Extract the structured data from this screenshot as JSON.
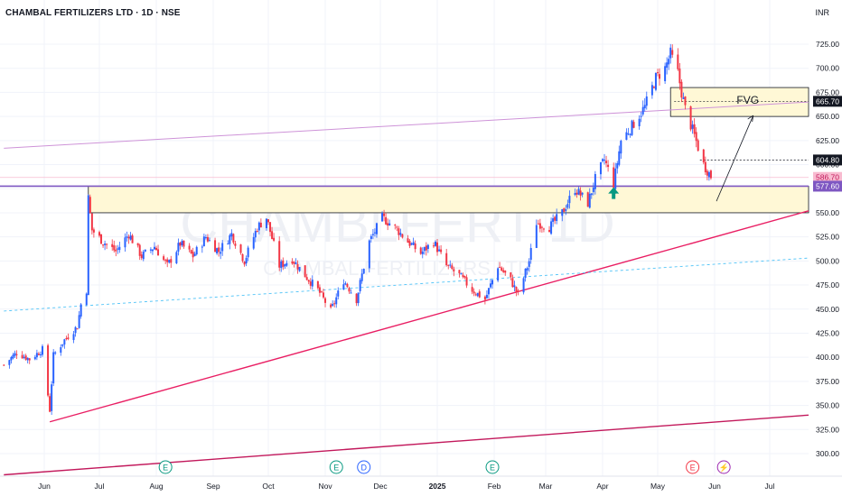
{
  "header": {
    "title": "CHAMBAL FERTILIZERS LTD · 1D · NSE",
    "currency": "INR"
  },
  "watermark": {
    "ticker": "CHAMBLFERT 1D",
    "name": "CHAMBAL FERTILIZERS LTD"
  },
  "chart_data": {
    "type": "candlestick",
    "ylim": [
      290,
      745
    ],
    "y_ticks": [
      725,
      700,
      675,
      650,
      625,
      600,
      575,
      550,
      525,
      500,
      475,
      450,
      425,
      400,
      375,
      350,
      325,
      300
    ],
    "y_tick_labels": [
      "725.00",
      "700.00",
      "675.00",
      "650.00",
      "625.00",
      "600.00",
      "575.00",
      "550.00",
      "525.00",
      "500.00",
      "475.00",
      "450.00",
      "425.00",
      "400.00",
      "375.00",
      "350.00",
      "325.00",
      "300.00"
    ],
    "x_labels": [
      {
        "label": "Jun",
        "date": "2024-06-01"
      },
      {
        "label": "Jul",
        "date": "2024-07-01"
      },
      {
        "label": "Aug",
        "date": "2024-08-01"
      },
      {
        "label": "Sep",
        "date": "2024-09-01"
      },
      {
        "label": "Oct",
        "date": "2024-10-01"
      },
      {
        "label": "Nov",
        "date": "2024-11-01"
      },
      {
        "label": "Dec",
        "date": "2024-12-01"
      },
      {
        "label": "2025",
        "date": "2025-01-01"
      },
      {
        "label": "Feb",
        "date": "2025-02-01"
      },
      {
        "label": "Mar",
        "date": "2025-03-01"
      },
      {
        "label": "Apr",
        "date": "2025-04-01"
      },
      {
        "label": "May",
        "date": "2025-05-01"
      },
      {
        "label": "Jun",
        "date": "2025-06-01"
      },
      {
        "label": "Jul",
        "date": "2025-07-01"
      }
    ],
    "price_path": [
      [
        "2024-05-10",
        392
      ],
      [
        "2024-05-17",
        405
      ],
      [
        "2024-05-24",
        398
      ],
      [
        "2024-05-31",
        408
      ],
      [
        "2024-06-04",
        345
      ],
      [
        "2024-06-06",
        402
      ],
      [
        "2024-06-12",
        418
      ],
      [
        "2024-06-19",
        432
      ],
      [
        "2024-06-21",
        455
      ],
      [
        "2024-06-24",
        470
      ],
      [
        "2024-06-25",
        565
      ],
      [
        "2024-06-27",
        532
      ],
      [
        "2024-07-03",
        520
      ],
      [
        "2024-07-10",
        510
      ],
      [
        "2024-07-17",
        528
      ],
      [
        "2024-07-24",
        505
      ],
      [
        "2024-07-31",
        515
      ],
      [
        "2024-08-07",
        495
      ],
      [
        "2024-08-14",
        518
      ],
      [
        "2024-08-21",
        505
      ],
      [
        "2024-08-28",
        525
      ],
      [
        "2024-09-04",
        510
      ],
      [
        "2024-09-11",
        528
      ],
      [
        "2024-09-18",
        500
      ],
      [
        "2024-09-25",
        535
      ],
      [
        "2024-09-30",
        545
      ],
      [
        "2024-10-07",
        495
      ],
      [
        "2024-10-14",
        502
      ],
      [
        "2024-10-21",
        485
      ],
      [
        "2024-10-28",
        470
      ],
      [
        "2024-11-04",
        448
      ],
      [
        "2024-11-11",
        480
      ],
      [
        "2024-11-18",
        460
      ],
      [
        "2024-11-25",
        520
      ],
      [
        "2024-12-02",
        545
      ],
      [
        "2024-12-09",
        535
      ],
      [
        "2024-12-16",
        520
      ],
      [
        "2024-12-23",
        508
      ],
      [
        "2024-12-30",
        520
      ],
      [
        "2025-01-06",
        495
      ],
      [
        "2025-01-13",
        485
      ],
      [
        "2025-01-20",
        470
      ],
      [
        "2025-01-27",
        460
      ],
      [
        "2025-02-03",
        495
      ],
      [
        "2025-02-10",
        480
      ],
      [
        "2025-02-14",
        465
      ],
      [
        "2025-02-20",
        500
      ],
      [
        "2025-02-24",
        540
      ],
      [
        "2025-03-03",
        535
      ],
      [
        "2025-03-10",
        550
      ],
      [
        "2025-03-17",
        575
      ],
      [
        "2025-03-24",
        560
      ],
      [
        "2025-03-28",
        585
      ],
      [
        "2025-04-02",
        605
      ],
      [
        "2025-04-07",
        580
      ],
      [
        "2025-04-11",
        625
      ],
      [
        "2025-04-17",
        640
      ],
      [
        "2025-04-24",
        660
      ],
      [
        "2025-04-30",
        690
      ],
      [
        "2025-05-05",
        700
      ],
      [
        "2025-05-08",
        715
      ],
      [
        "2025-05-12",
        695
      ],
      [
        "2025-05-14",
        675
      ],
      [
        "2025-05-16",
        658
      ],
      [
        "2025-05-21",
        630
      ],
      [
        "2025-05-26",
        600
      ],
      [
        "2025-05-30",
        588
      ]
    ],
    "price_labels": [
      {
        "value": 665.7,
        "text": "665.70",
        "style": "black"
      },
      {
        "value": 604.8,
        "text": "604.80",
        "style": "black"
      },
      {
        "value": 586.7,
        "text": "586.70",
        "style": "pink"
      },
      {
        "value": 577.6,
        "text": "577.60",
        "style": "purple"
      }
    ],
    "annotation": "FVG",
    "zones": [
      {
        "top": 577.6,
        "bottom": 550,
        "from": "2024-06-25",
        "to": "2025-07-31"
      },
      {
        "top": 680,
        "bottom": 650,
        "from": "2025-05-08",
        "to": "2025-07-31"
      }
    ],
    "lines": [
      {
        "name": "rising-trendline",
        "from": [
          "2024-06-04",
          333
        ],
        "to": [
          "2025-07-31",
          552
        ],
        "color": "#e91e63"
      },
      {
        "name": "lower-channel",
        "from": [
          "2024-05-10",
          278
        ],
        "to": [
          "2025-07-31",
          340
        ],
        "color": "#c2185b"
      },
      {
        "name": "upper-channel",
        "from": [
          "2024-05-10",
          617
        ],
        "to": [
          "2025-07-31",
          665
        ],
        "color": "#ce93d8"
      },
      {
        "name": "dotted-midline",
        "from": [
          "2024-05-10",
          448
        ],
        "to": [
          "2025-07-31",
          503
        ],
        "color": "#4fc3f7"
      }
    ],
    "events": [
      {
        "date": "2024-08-06",
        "letter": "E",
        "color": "#089981"
      },
      {
        "date": "2024-11-07",
        "letter": "E",
        "color": "#089981"
      },
      {
        "date": "2024-11-22",
        "letter": "D",
        "color": "#2962ff"
      },
      {
        "date": "2025-01-31",
        "letter": "E",
        "color": "#089981"
      },
      {
        "date": "2025-05-20",
        "letter": "E",
        "color": "#f23645"
      },
      {
        "date": "2025-06-06",
        "letter": "⚡",
        "color": "#9c27b0"
      }
    ]
  },
  "colors": {
    "up": "#2962ff",
    "down": "#f23645",
    "zone": "#fff8d6",
    "arrow": "#089981"
  }
}
